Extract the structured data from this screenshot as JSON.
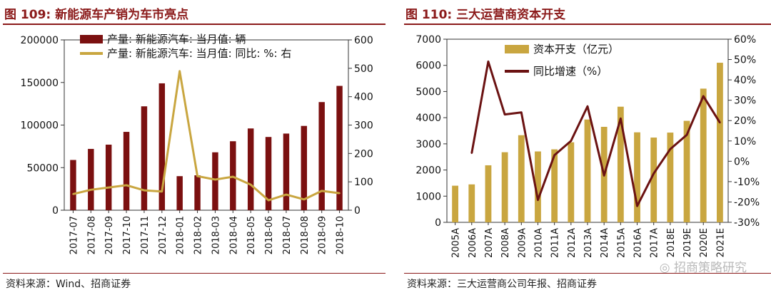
{
  "left": {
    "title": "图 109:  新能源车产销为车市亮点",
    "source": "资料来源：Wind、招商证券"
  },
  "right": {
    "title": "图 110:  三大运营商资本开支",
    "source": "资料来源：三大运营商公司年报、招商证券",
    "watermark": "招商策略研究"
  },
  "colors": {
    "accent": "#8B1A1A",
    "bar_left": "#7B1010",
    "line_left": "#C9A640",
    "bar_right": "#C9A640",
    "line_right": "#6B1212"
  },
  "chart_data": [
    {
      "type": "bar",
      "categories": [
        "2017-07",
        "2017-08",
        "2017-09",
        "2017-10",
        "2017-11",
        "2017-12",
        "2018-01",
        "2018-02",
        "2018-03",
        "2018-04",
        "2018-05",
        "2018-06",
        "2018-07",
        "2018-08",
        "2018-09",
        "2018-10"
      ],
      "series": [
        {
          "name": "产量: 新能源汽车: 当月值: 辆",
          "type": "bar",
          "axis": "left",
          "values": [
            59000,
            72000,
            77000,
            92000,
            122000,
            149000,
            40000,
            41000,
            68000,
            81000,
            96000,
            86000,
            90000,
            99000,
            127000,
            146000
          ]
        },
        {
          "name": "产量: 新能源汽车: 当月值: 同比: %: 右",
          "type": "line",
          "axis": "right",
          "values": [
            57,
            72,
            80,
            88,
            70,
            66,
            490,
            120,
            108,
            118,
            90,
            35,
            55,
            38,
            68,
            60
          ]
        }
      ],
      "ylim": [
        0,
        200000
      ],
      "yticks": [
        "0",
        "50000",
        "100000",
        "150000",
        "200000"
      ],
      "ylim_right": [
        0,
        600
      ],
      "yticks_right": [
        "0",
        "100",
        "200",
        "300",
        "400",
        "500",
        "600"
      ],
      "legend": "top-left",
      "grid": false
    },
    {
      "type": "bar",
      "categories": [
        "2005A",
        "2006A",
        "2007A",
        "2008A",
        "2009A",
        "2010A",
        "2011A",
        "2012A",
        "2013A",
        "2014A",
        "2015A",
        "2016A",
        "2017A",
        "2018E",
        "2019E",
        "2020E",
        "2021E"
      ],
      "series": [
        {
          "name": "资本开支（亿元）",
          "type": "bar",
          "axis": "left",
          "values": [
            1400,
            1450,
            2180,
            2680,
            3330,
            2710,
            2790,
            3060,
            3930,
            3650,
            4420,
            3440,
            3240,
            3430,
            3880,
            5110,
            6100
          ]
        },
        {
          "name": "同比增速（%）",
          "type": "line",
          "axis": "right",
          "values": [
            null,
            4,
            49,
            23,
            24,
            -19,
            3,
            10,
            27,
            -7,
            21,
            -22,
            -6,
            6,
            13,
            32,
            19
          ]
        }
      ],
      "ylim": [
        0,
        7000
      ],
      "yticks": [
        "0",
        "1000",
        "2000",
        "3000",
        "4000",
        "5000",
        "6000",
        "7000"
      ],
      "ylim_right": [
        -30,
        60
      ],
      "yticks_right": [
        "-30%",
        "-20%",
        "-10%",
        "0%",
        "10%",
        "20%",
        "30%",
        "40%",
        "50%",
        "60%"
      ],
      "legend": "top-left",
      "grid": false
    }
  ]
}
